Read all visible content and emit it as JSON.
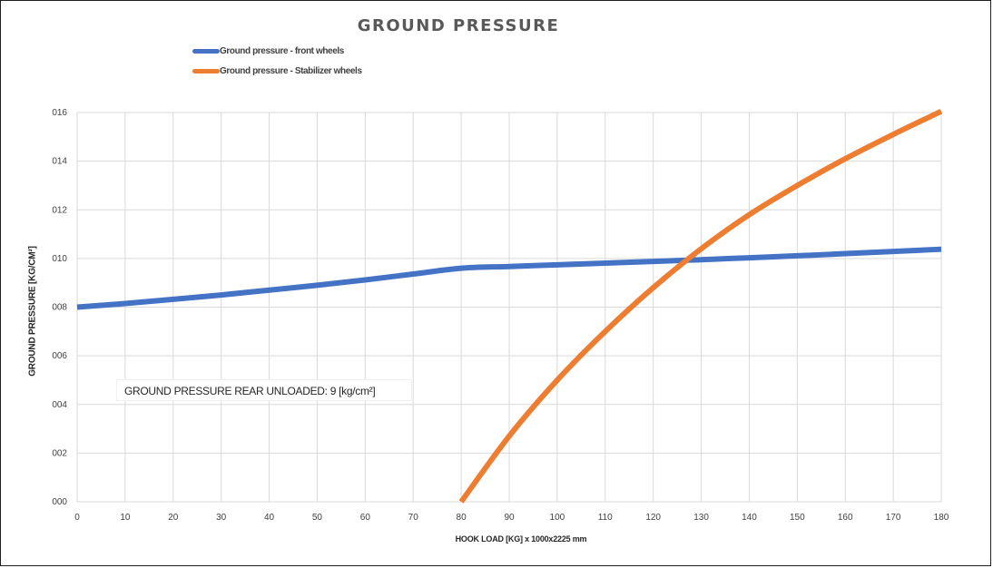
{
  "chart_data": {
    "type": "line",
    "title": "GROUND PRESSURE",
    "xlabel": "HOOK LOAD [KG] x 1000x2225 mm",
    "ylabel": "GROUND PRESSURE [KG/CM²]",
    "x_ticks": [
      "0",
      "10",
      "20",
      "30",
      "40",
      "50",
      "60",
      "70",
      "80",
      "90",
      "100",
      "110",
      "120",
      "130",
      "140",
      "150",
      "160",
      "170",
      "180"
    ],
    "y_ticks": [
      "000",
      "002",
      "004",
      "006",
      "008",
      "010",
      "012",
      "014",
      "016"
    ],
    "xlim": [
      0,
      180
    ],
    "ylim": [
      0,
      16
    ],
    "grid": true,
    "legend_position": "top-left",
    "annotation": "GROUND PRESSURE REAR UNLOADED: 9 [kg/cm²]",
    "series": [
      {
        "name": "Ground pressure - front wheels",
        "color": "#4472C4",
        "points": [
          [
            0,
            8.0
          ],
          [
            10,
            8.15
          ],
          [
            20,
            8.32
          ],
          [
            30,
            8.5
          ],
          [
            40,
            8.7
          ],
          [
            50,
            8.9
          ],
          [
            60,
            9.12
          ],
          [
            70,
            9.36
          ],
          [
            80,
            9.6
          ],
          [
            90,
            9.67
          ],
          [
            100,
            9.74
          ],
          [
            110,
            9.81
          ],
          [
            120,
            9.88
          ],
          [
            130,
            9.95
          ],
          [
            140,
            10.03
          ],
          [
            150,
            10.11
          ],
          [
            160,
            10.2
          ],
          [
            170,
            10.29
          ],
          [
            180,
            10.38
          ]
        ]
      },
      {
        "name": "Ground pressure - Stabilizer wheels",
        "color": "#ED7D31",
        "points": [
          [
            80,
            0.0
          ],
          [
            90,
            2.7
          ],
          [
            100,
            5.0
          ],
          [
            110,
            7.0
          ],
          [
            120,
            8.8
          ],
          [
            130,
            10.4
          ],
          [
            140,
            11.8
          ],
          [
            150,
            13.0
          ],
          [
            160,
            14.1
          ],
          [
            170,
            15.1
          ],
          [
            180,
            16.05
          ]
        ]
      }
    ]
  }
}
